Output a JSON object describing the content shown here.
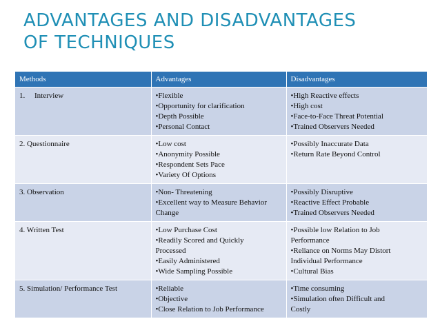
{
  "title": {
    "line1": "Advantages and Disadvantages",
    "line2": "of Techniques"
  },
  "table": {
    "headers": [
      "Methods",
      "Advantages",
      "Disadvantages"
    ],
    "rows": [
      {
        "method_num": "1.",
        "method": "Interview",
        "advantages": [
          "•Flexible",
          "•Opportunity for clarification",
          "•Depth Possible",
          "•Personal Contact"
        ],
        "disadvantages": [
          "•High Reactive effects",
          "•High cost",
          "•Face-to-Face Threat Potential",
          "•Trained Observers Needed"
        ]
      },
      {
        "method": "2. Questionnaire",
        "advantages": [
          "•Low cost",
          "•Anonymity Possible",
          "•Respondent Sets Pace",
          "•Variety Of Options"
        ],
        "disadvantages": [
          "•Possibly Inaccurate Data",
          "•Return Rate Beyond Control"
        ]
      },
      {
        "method": "3. Observation",
        "advantages": [
          "•Non- Threatening",
          "•Excellent way to Measure Behavior",
          "Change"
        ],
        "disadvantages": [
          "•Possibly Disruptive",
          "•Reactive Effect Probable",
          "•Trained Observers Needed"
        ]
      },
      {
        "method": "4. Written Test",
        "advantages": [
          "•Low Purchase Cost",
          "•Readily Scored and Quickly",
          "Processed",
          "•Easily Administered",
          "•Wide Sampling Possible"
        ],
        "disadvantages": [
          "•Possible low Relation to Job",
          "Performance",
          "•Reliance on Norms May Distort",
          "Individual Performance",
          "•Cultural Bias"
        ]
      },
      {
        "method": "5. Simulation/ Performance Test",
        "advantages": [
          "•Reliable",
          "•Objective",
          "•Close Relation to Job Performance"
        ],
        "disadvantages": [
          "•Time consuming",
          "•Simulation often Difficult and",
          "Costly"
        ]
      }
    ]
  }
}
